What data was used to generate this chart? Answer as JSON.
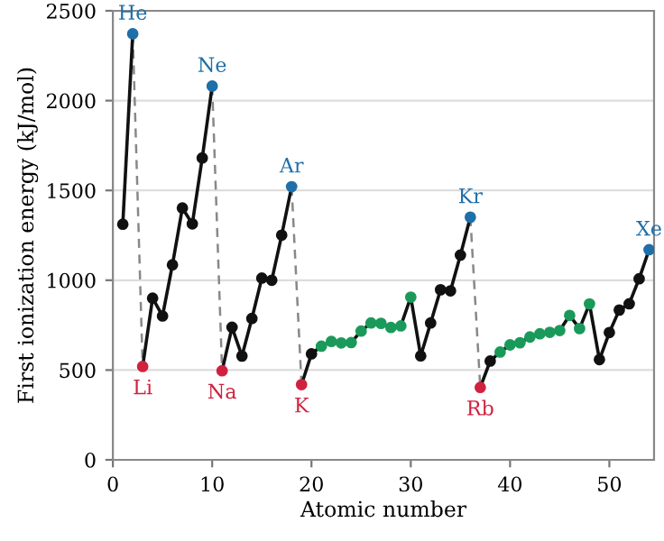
{
  "chart_data": {
    "type": "line",
    "xlabel": "Atomic number",
    "ylabel": "First ionization energy (kJ/mol)",
    "xlim": [
      0,
      54.5
    ],
    "xticks": [
      0,
      10,
      20,
      30,
      40,
      50
    ],
    "ylim": [
      0,
      2500
    ],
    "yticks": [
      0,
      500,
      1000,
      1500,
      2000,
      2500
    ],
    "grid": "y",
    "marker": "circle",
    "line_style": "solid",
    "series": [
      {
        "color": "#111111",
        "x": [
          1,
          2
        ],
        "values": [
          1312,
          2372
        ],
        "colors": [
          "#111111",
          "#1f6fa8"
        ]
      },
      {
        "color": "#111111",
        "x": [
          3,
          4,
          5,
          6,
          7,
          8,
          9,
          10
        ],
        "values": [
          520,
          900,
          801,
          1086,
          1402,
          1314,
          1681,
          2081
        ],
        "colors": [
          "#d0223f",
          "#111111",
          "#111111",
          "#111111",
          "#111111",
          "#111111",
          "#111111",
          "#1f6fa8"
        ]
      },
      {
        "color": "#111111",
        "x": [
          11,
          12,
          13,
          14,
          15,
          16,
          17,
          18
        ],
        "values": [
          496,
          738,
          578,
          787,
          1012,
          1000,
          1251,
          1521
        ],
        "colors": [
          "#d0223f",
          "#111111",
          "#111111",
          "#111111",
          "#111111",
          "#111111",
          "#111111",
          "#1f6fa8"
        ]
      },
      {
        "color": "#111111",
        "x": [
          19,
          20,
          21,
          22,
          23,
          24,
          25,
          26,
          27,
          28,
          29,
          30,
          31,
          32,
          33,
          34,
          35,
          36
        ],
        "values": [
          419,
          590,
          633,
          659,
          651,
          653,
          717,
          762,
          760,
          737,
          746,
          906,
          579,
          762,
          947,
          941,
          1140,
          1351
        ],
        "colors": [
          "#d0223f",
          "#111111",
          "#1a9a5a",
          "#1a9a5a",
          "#1a9a5a",
          "#1a9a5a",
          "#1a9a5a",
          "#1a9a5a",
          "#1a9a5a",
          "#1a9a5a",
          "#1a9a5a",
          "#1a9a5a",
          "#111111",
          "#111111",
          "#111111",
          "#111111",
          "#111111",
          "#1f6fa8"
        ]
      },
      {
        "color": "#111111",
        "x": [
          37,
          38,
          39,
          40,
          41,
          42,
          43,
          44,
          45,
          46,
          47,
          48,
          49,
          50,
          51,
          52,
          53,
          54
        ],
        "values": [
          403,
          550,
          600,
          640,
          652,
          684,
          702,
          710,
          720,
          804,
          731,
          868,
          558,
          709,
          834,
          869,
          1008,
          1170
        ],
        "colors": [
          "#d0223f",
          "#111111",
          "#1a9a5a",
          "#1a9a5a",
          "#1a9a5a",
          "#1a9a5a",
          "#1a9a5a",
          "#1a9a5a",
          "#1a9a5a",
          "#1a9a5a",
          "#1a9a5a",
          "#1a9a5a",
          "#111111",
          "#111111",
          "#111111",
          "#111111",
          "#111111",
          "#1f6fa8"
        ]
      },
      {
        "color": "#888888",
        "x": [
          2,
          3
        ],
        "values": [
          2372,
          520
        ],
        "marker": "none",
        "line_style": "dashed"
      },
      {
        "color": "#888888",
        "x": [
          10,
          11
        ],
        "values": [
          2081,
          496
        ],
        "marker": "none",
        "line_style": "dashed"
      },
      {
        "color": "#888888",
        "x": [
          18,
          19
        ],
        "values": [
          1521,
          419
        ],
        "marker": "none",
        "line_style": "dashed"
      },
      {
        "color": "#888888",
        "x": [
          36,
          37
        ],
        "values": [
          1351,
          403
        ],
        "marker": "none",
        "line_style": "dashed"
      }
    ],
    "annotations": [
      {
        "text": "He",
        "x": 2,
        "y": 2372
      },
      {
        "text": "Ne",
        "x": 10,
        "y": 2081
      },
      {
        "text": "Ar",
        "x": 18,
        "y": 1521
      },
      {
        "text": "Kr",
        "x": 36,
        "y": 1351
      },
      {
        "text": "Xe",
        "x": 54,
        "y": 1170
      },
      {
        "text": "Li",
        "x": 3,
        "y": 520
      },
      {
        "text": "Na",
        "x": 11,
        "y": 496
      },
      {
        "text": "K",
        "x": 19,
        "y": 419
      },
      {
        "text": "Rb",
        "x": 37,
        "y": 403
      }
    ]
  }
}
